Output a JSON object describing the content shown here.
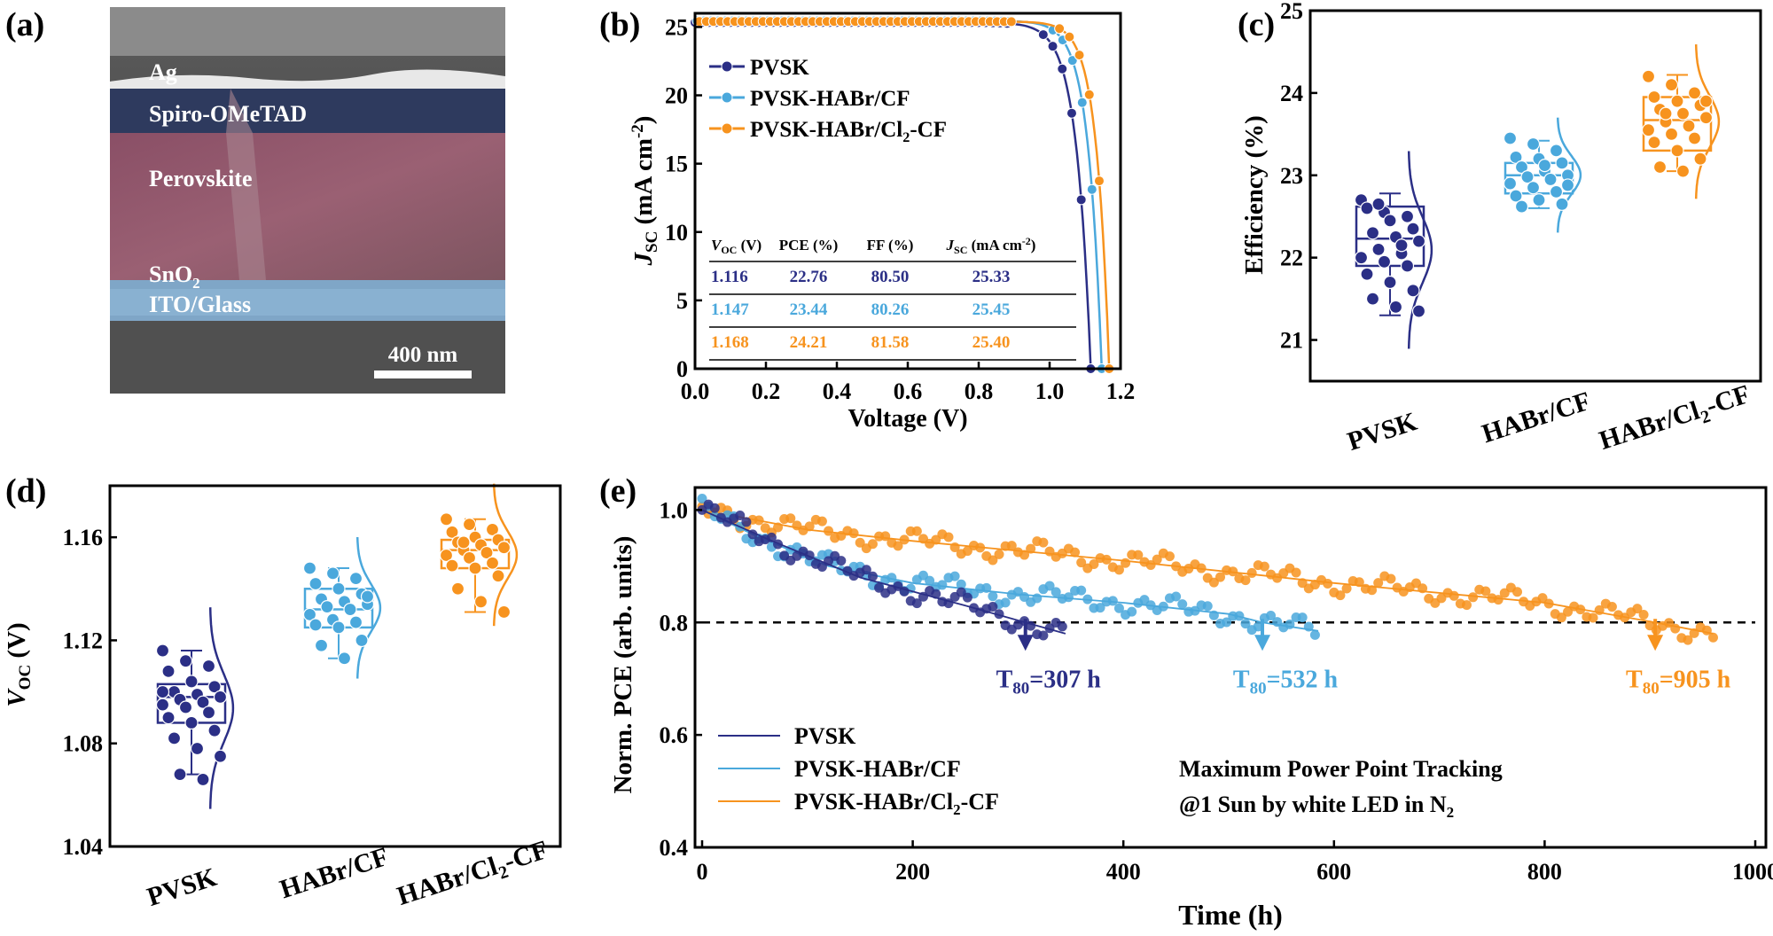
{
  "panels": {
    "a": "(a)",
    "b": "(b)",
    "c": "(c)",
    "d": "(d)",
    "e": "(e)"
  },
  "colors": {
    "pvsk": "#2b2f86",
    "cf": "#4aa8dc",
    "cl": "#f7931e"
  },
  "sem": {
    "layers": [
      "Ag",
      "Spiro-OMeTAD",
      "Perovskite",
      "SnO2",
      "ITO/Glass"
    ],
    "scale_bar": "400 nm"
  },
  "chart_data": [
    {
      "panel": "b",
      "type": "line",
      "xlabel": "Voltage (V)",
      "ylabel": "JSC (mA cm-2)",
      "xlim": [
        0,
        1.2
      ],
      "ylim": [
        0,
        26
      ],
      "xticks": [
        "0.0",
        "0.2",
        "0.4",
        "0.6",
        "0.8",
        "1.0",
        "1.2"
      ],
      "yticks": [
        "0",
        "5",
        "10",
        "15",
        "20",
        "25"
      ],
      "legend": [
        "PVSK",
        "PVSK-HABr/CF",
        "PVSK-HABr/Cl2-CF"
      ],
      "series": [
        {
          "name": "PVSK",
          "color": "#2b2f86",
          "jsc": 25.33,
          "voc": 1.116,
          "k": 0.04
        },
        {
          "name": "PVSK-HABr/CF",
          "color": "#4aa8dc",
          "jsc": 25.45,
          "voc": 1.147,
          "k": 0.038
        },
        {
          "name": "PVSK-HABr/Cl2-CF",
          "color": "#f7931e",
          "jsc": 25.4,
          "voc": 1.168,
          "k": 0.036
        }
      ],
      "table": {
        "headers": [
          "VOC (V)",
          "PCE (%)",
          "FF (%)",
          "JSC (mA cm-2)"
        ],
        "rows": [
          [
            "1.116",
            "22.76",
            "80.50",
            "25.33"
          ],
          [
            "1.147",
            "23.44",
            "80.26",
            "25.45"
          ],
          [
            "1.168",
            "24.21",
            "81.58",
            "25.40"
          ]
        ]
      }
    },
    {
      "panel": "c",
      "type": "scatter",
      "ylabel": "Efficiency (%)",
      "ylim": [
        20.5,
        25
      ],
      "yticks": [
        "21",
        "22",
        "23",
        "24",
        "25"
      ],
      "categories": [
        "PVSK",
        "HABr/CF",
        "HABr/Cl2-CF"
      ],
      "boxes": [
        {
          "q1": 21.9,
          "med": 22.23,
          "q3": 22.62,
          "wlo": 21.3,
          "whi": 22.78,
          "points": [
            22.7,
            22.55,
            22.5,
            22.6,
            22.45,
            22.35,
            22.3,
            22.25,
            22.2,
            22.1,
            22.05,
            22.0,
            21.95,
            21.9,
            21.8,
            21.7,
            21.6,
            21.5,
            21.4,
            21.35,
            22.65,
            22.15
          ]
        },
        {
          "q1": 22.78,
          "med": 23.0,
          "q3": 23.15,
          "wlo": 22.6,
          "whi": 23.42,
          "points": [
            23.45,
            23.38,
            23.3,
            23.22,
            23.2,
            23.15,
            23.1,
            23.05,
            23.0,
            22.98,
            22.95,
            22.9,
            22.85,
            22.8,
            22.75,
            22.7,
            22.65,
            22.62,
            23.12,
            22.88
          ]
        },
        {
          "q1": 23.3,
          "med": 23.67,
          "q3": 23.95,
          "wlo": 23.05,
          "whi": 24.22,
          "points": [
            24.2,
            24.1,
            24.0,
            23.95,
            23.9,
            23.85,
            23.8,
            23.75,
            23.7,
            23.65,
            23.6,
            23.55,
            23.5,
            23.45,
            23.4,
            23.3,
            23.2,
            23.1,
            23.05,
            23.9,
            23.75
          ]
        }
      ]
    },
    {
      "panel": "d",
      "type": "scatter",
      "ylabel": "VOC (V)",
      "ylim": [
        1.04,
        1.18
      ],
      "yticks": [
        "1.04",
        "1.08",
        "1.12",
        "1.16"
      ],
      "categories": [
        "PVSK",
        "HABr/CF",
        "HABr/Cl2-CF"
      ],
      "boxes": [
        {
          "q1": 1.088,
          "med": 1.098,
          "q3": 1.103,
          "wlo": 1.068,
          "whi": 1.116,
          "points": [
            1.116,
            1.112,
            1.11,
            1.108,
            1.104,
            1.102,
            1.1,
            1.099,
            1.098,
            1.097,
            1.096,
            1.095,
            1.094,
            1.092,
            1.09,
            1.088,
            1.085,
            1.082,
            1.078,
            1.075,
            1.068,
            1.066,
            1.1
          ]
        },
        {
          "q1": 1.125,
          "med": 1.132,
          "q3": 1.14,
          "wlo": 1.113,
          "whi": 1.148,
          "points": [
            1.148,
            1.146,
            1.144,
            1.142,
            1.14,
            1.138,
            1.136,
            1.135,
            1.134,
            1.133,
            1.132,
            1.13,
            1.128,
            1.127,
            1.126,
            1.125,
            1.12,
            1.118,
            1.113,
            1.137
          ]
        },
        {
          "q1": 1.148,
          "med": 1.155,
          "q3": 1.159,
          "wlo": 1.131,
          "whi": 1.167,
          "points": [
            1.167,
            1.165,
            1.163,
            1.162,
            1.16,
            1.159,
            1.158,
            1.157,
            1.156,
            1.155,
            1.154,
            1.153,
            1.152,
            1.15,
            1.149,
            1.148,
            1.145,
            1.14,
            1.135,
            1.131,
            1.158
          ]
        }
      ]
    },
    {
      "panel": "e",
      "type": "line",
      "xlabel": "Time (h)",
      "ylabel": "Norm. PCE (arb. units)",
      "xlim": [
        0,
        1000
      ],
      "ylim": [
        0.4,
        1.04
      ],
      "xticks": [
        "0",
        "200",
        "400",
        "600",
        "800",
        "1000"
      ],
      "yticks": [
        "0.4",
        "0.6",
        "0.8",
        "1.0"
      ],
      "threshold": 0.8,
      "legend": [
        "PVSK",
        "PVSK-HABr/CF",
        "PVSK-HABr/Cl2-CF"
      ],
      "annotations": [
        "Maximum Power Point Tracking",
        "@1 Sun by white LED in N2"
      ],
      "t80": [
        {
          "label": "T80=307 h",
          "t": 307
        },
        {
          "label": "T80=532 h",
          "t": 532
        },
        {
          "label": "T80=905 h",
          "t": 905
        }
      ],
      "series": [
        {
          "name": "PVSK",
          "color": "#2b2f86",
          "t_end": 345,
          "fit": [
            [
              0,
              1.0
            ],
            [
              60,
              0.95
            ],
            [
              150,
              0.88
            ],
            [
              250,
              0.83
            ],
            [
              307,
              0.8
            ],
            [
              345,
              0.78
            ]
          ]
        },
        {
          "name": "PVSK-HABr/CF",
          "color": "#4aa8dc",
          "t_end": 585,
          "fit": [
            [
              0,
              1.0
            ],
            [
              50,
              0.955
            ],
            [
              120,
              0.9
            ],
            [
              200,
              0.87
            ],
            [
              300,
              0.85
            ],
            [
              400,
              0.835
            ],
            [
              500,
              0.815
            ],
            [
              532,
              0.8
            ],
            [
              585,
              0.785
            ]
          ]
        },
        {
          "name": "PVSK-HABr/Cl2-CF",
          "color": "#f7931e",
          "t_end": 960,
          "fit": [
            [
              0,
              1.0
            ],
            [
              100,
              0.965
            ],
            [
              200,
              0.945
            ],
            [
              400,
              0.91
            ],
            [
              600,
              0.87
            ],
            [
              800,
              0.835
            ],
            [
              905,
              0.8
            ],
            [
              960,
              0.78
            ]
          ]
        }
      ]
    }
  ]
}
